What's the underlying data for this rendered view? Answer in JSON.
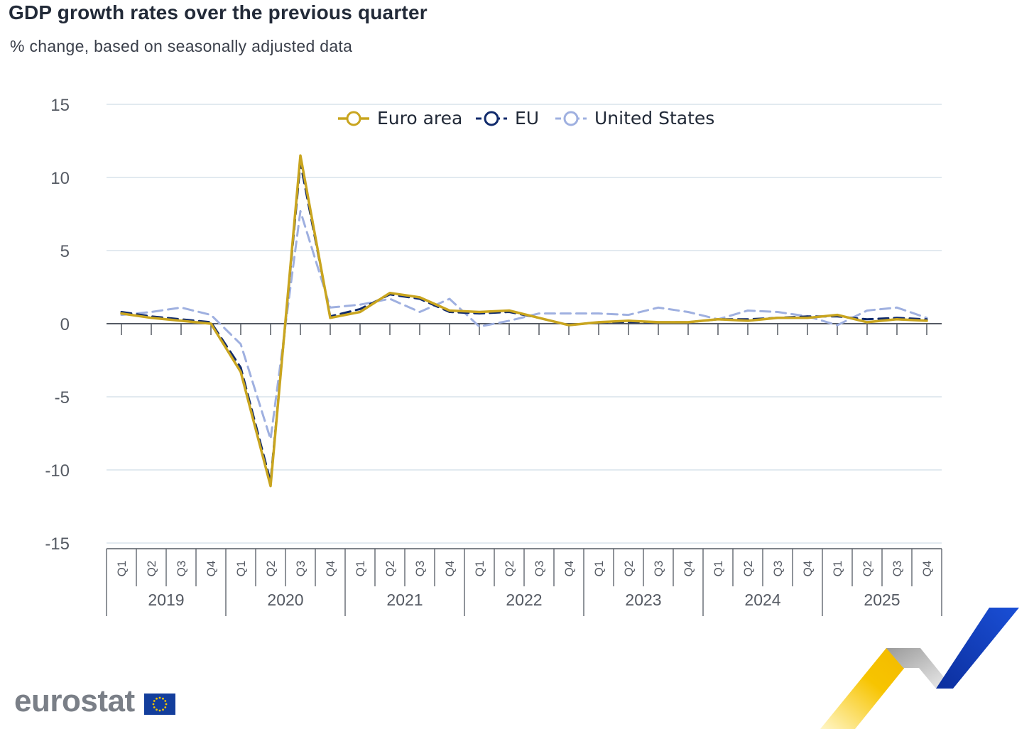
{
  "title": "GDP growth rates over the previous quarter",
  "subtitle": "% change, based on seasonally adjusted data",
  "brand": "eurostat",
  "colors": {
    "euro_area": "#c9a51f",
    "eu": "#102a6b",
    "us": "#9fb0e0",
    "grid": "#d9e4ec",
    "axis": "#555a63"
  },
  "chart_data": {
    "type": "line",
    "title": "GDP growth rates over the previous quarter",
    "subtitle": "% change, based on seasonally adjusted data",
    "xlabel": "",
    "ylabel": "",
    "ylim": [
      -15,
      15
    ],
    "yticks": [
      15,
      10,
      5,
      0,
      -5,
      -10,
      -15
    ],
    "grid": true,
    "legend_position": "top-center",
    "years": [
      "2019",
      "2020",
      "2021",
      "2022",
      "2023",
      "2024",
      "2025"
    ],
    "quarters": [
      "Q1",
      "Q2",
      "Q3",
      "Q4"
    ],
    "series": [
      {
        "name": "Euro area",
        "style": "solid",
        "values": [
          0.7,
          0.4,
          0.2,
          0.0,
          -3.3,
          -11.1,
          11.5,
          0.4,
          0.8,
          2.1,
          1.8,
          0.9,
          0.8,
          0.9,
          0.4,
          -0.1,
          0.1,
          0.2,
          0.1,
          0.1,
          0.3,
          0.2,
          0.4,
          0.4,
          0.6,
          0.1,
          0.3,
          0.2
        ]
      },
      {
        "name": "EU",
        "style": "dashed",
        "values": [
          0.8,
          0.5,
          0.3,
          0.1,
          -3.0,
          -10.8,
          11.0,
          0.5,
          1.0,
          2.0,
          1.7,
          0.8,
          0.7,
          0.8,
          0.4,
          -0.1,
          0.1,
          0.1,
          0.1,
          0.1,
          0.3,
          0.3,
          0.4,
          0.5,
          0.5,
          0.3,
          0.4,
          0.3
        ]
      },
      {
        "name": "United States",
        "style": "dashed",
        "values": [
          0.6,
          0.8,
          1.1,
          0.6,
          -1.4,
          -7.9,
          7.7,
          1.1,
          1.3,
          1.7,
          0.8,
          1.7,
          -0.2,
          0.2,
          0.7,
          0.7,
          0.7,
          0.6,
          1.1,
          0.8,
          0.3,
          0.9,
          0.8,
          0.5,
          -0.1,
          0.9,
          1.1,
          0.4
        ]
      }
    ]
  }
}
